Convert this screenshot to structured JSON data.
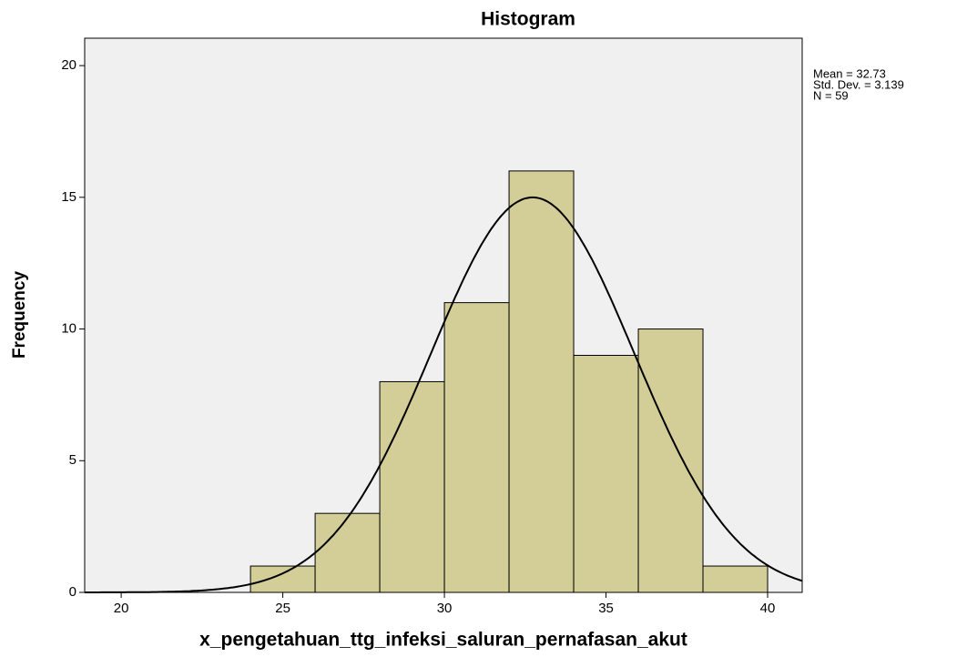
{
  "chart_data": {
    "type": "histogram",
    "title": "Histogram",
    "x_label": "x_pengetahuan_ttg_infeksi_saluran_pernafasan_akut",
    "y_label": "Frequency",
    "bins": [
      24,
      26,
      28,
      30,
      32,
      34,
      36,
      38,
      40
    ],
    "values": [
      1,
      3,
      8,
      11,
      16,
      9,
      10,
      1
    ],
    "color": "#d3ce97",
    "curve_color": "#000000",
    "xlim": [
      18.87,
      41.07
    ],
    "xticks": [
      20,
      25,
      30,
      35,
      40
    ],
    "ylim": [
      0,
      21.04
    ],
    "yticks": [
      0,
      5,
      10,
      15,
      20
    ],
    "stats": [
      {
        "value": 32.73,
        "label": "Mean = 32.73"
      },
      {
        "value": 3.139,
        "label": "Std. Dev. = 3.139"
      },
      {
        "value": 59,
        "label": "N = 59"
      }
    ]
  }
}
